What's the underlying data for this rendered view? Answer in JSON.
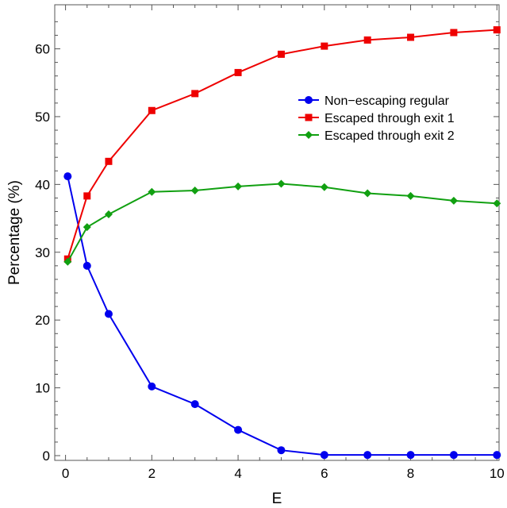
{
  "chart_data": {
    "type": "line",
    "xlabel": "E",
    "ylabel": "Percentage (%)",
    "xlim": [
      -0.25,
      10.05
    ],
    "ylim": [
      -0.7,
      66.5
    ],
    "xticks": [
      0,
      2,
      4,
      6,
      8,
      10
    ],
    "yticks": [
      0,
      10,
      20,
      30,
      40,
      50,
      60
    ],
    "grid": false,
    "legend_position": "top-right",
    "x": [
      0.05,
      0.5,
      1,
      2,
      3,
      4,
      5,
      6,
      7,
      8,
      9,
      10
    ],
    "series": [
      {
        "name": "Non−escaping regular",
        "color": "#0000ee",
        "marker": "circle",
        "values": [
          41.2,
          28.0,
          20.9,
          10.2,
          7.6,
          3.8,
          0.8,
          0.1,
          0.1,
          0.1,
          0.1,
          0.1
        ]
      },
      {
        "name": "Escaped through exit 1",
        "color": "#ee0000",
        "marker": "square",
        "values": [
          29.0,
          38.3,
          43.4,
          50.9,
          53.4,
          56.5,
          59.2,
          60.4,
          61.3,
          61.7,
          62.4,
          62.8
        ]
      },
      {
        "name": "Escaped through exit 2",
        "color": "#11a011",
        "marker": "diamond",
        "values": [
          28.6,
          33.7,
          35.6,
          38.9,
          39.1,
          39.7,
          40.1,
          39.6,
          38.7,
          38.3,
          37.6,
          37.2
        ]
      }
    ]
  }
}
